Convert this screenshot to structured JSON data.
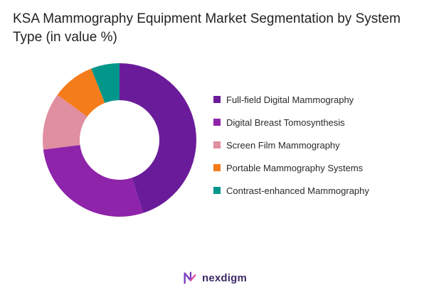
{
  "chart_data": {
    "type": "pie",
    "title": "KSA Mammography Equipment Market Segmentation by System Type (in value %)",
    "categories": [
      "Full-field Digital Mammography",
      "Digital Breast Tomosynthesis",
      "Screen Film Mammography",
      "Portable Mammography Systems",
      "Contrast-enhanced Mammography"
    ],
    "values": [
      45,
      28,
      12,
      9,
      6
    ],
    "colors": [
      "#6a1b9a",
      "#8e24aa",
      "#e08fa0",
      "#f57c1a",
      "#00968a"
    ],
    "donut": true,
    "legend": "right"
  },
  "brand": {
    "name": "nexdigm"
  }
}
